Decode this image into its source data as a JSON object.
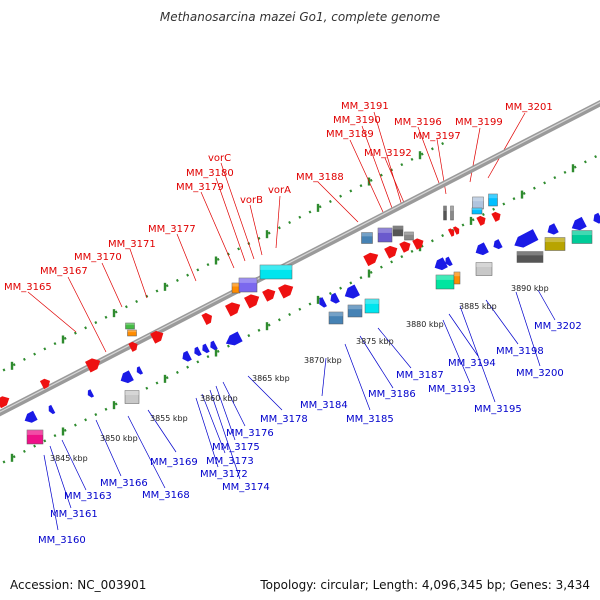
{
  "title": "Methanosarcina mazei Go1, complete genome",
  "footer": {
    "accession": "Accession: NC_003901",
    "summary": "Topology: circular; Length: 4,096,345 bp; Genes: 3,434"
  },
  "colors": {
    "forward_label": "#e00000",
    "reverse_label": "#0000cc",
    "backbone": "#8a8a8a",
    "tick": "#2e8b2e",
    "gene_red": "#ee1111",
    "gene_blue": "#1a1ae6"
  },
  "kbp_ticks": [
    "3845 kbp",
    "3850 kbp",
    "3855 kbp",
    "3860 kbp",
    "3865 kbp",
    "3870 kbp",
    "3875 kbp",
    "3880 kbp",
    "3885 kbp",
    "3890 kbp"
  ],
  "forward_labels": [
    "MM_3165",
    "MM_3167",
    "MM_3170",
    "MM_3171",
    "MM_3177",
    "MM_3179",
    "MM_3180",
    "vorC",
    "vorB",
    "vorA",
    "MM_3188",
    "MM_3189",
    "MM_3190",
    "MM_3191",
    "MM_3192",
    "MM_3196",
    "MM_3197",
    "MM_3199",
    "MM_3201"
  ],
  "reverse_labels": [
    "MM_3160",
    "MM_3161",
    "MM_3163",
    "MM_3166",
    "MM_3168",
    "MM_3169",
    "MM_3172",
    "MM_3173",
    "MM_3174",
    "MM_3175",
    "MM_3176",
    "MM_3178",
    "MM_3184",
    "MM_3185",
    "MM_3186",
    "MM_3187",
    "MM_3193",
    "MM_3194",
    "MM_3195",
    "MM_3198",
    "MM_3200",
    "MM_3202"
  ]
}
